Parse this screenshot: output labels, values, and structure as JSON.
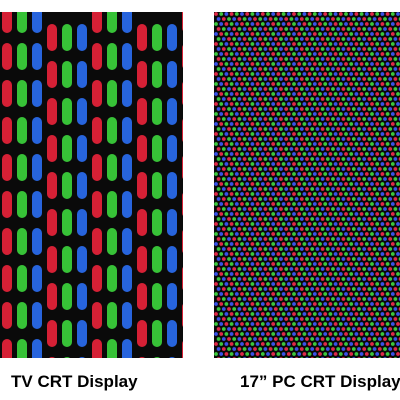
{
  "panels": [
    {
      "caption": "TV CRT Display",
      "pattern": "aperture-grille slot phosphors",
      "colors": {
        "red": "#e8233a",
        "green": "#3cd23c",
        "blue": "#2a6cf0",
        "background": "#0a0a0a"
      }
    },
    {
      "caption": "17” PC CRT Display",
      "pattern": "shadow-mask dot triads",
      "colors": {
        "red": "#e02848",
        "green": "#3cc83c",
        "blue": "#3a52e8",
        "background": "#0a0a0a"
      }
    }
  ]
}
